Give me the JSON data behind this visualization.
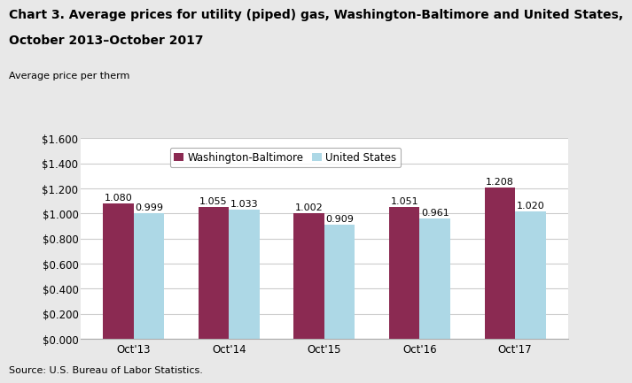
{
  "title_line1": "Chart 3. Average prices for utility (piped) gas, Washington-Baltimore and United States,",
  "title_line2": "October 2013–October 2017",
  "ylabel": "Average price per therm",
  "source": "Source: U.S. Bureau of Labor Statistics.",
  "categories": [
    "Oct'13",
    "Oct'14",
    "Oct'15",
    "Oct'16",
    "Oct'17"
  ],
  "series": [
    {
      "name": "Washington-Baltimore",
      "values": [
        1.08,
        1.055,
        1.002,
        1.051,
        1.208
      ],
      "color": "#8B2A52"
    },
    {
      "name": "United States",
      "values": [
        0.999,
        1.033,
        0.909,
        0.961,
        1.02
      ],
      "color": "#ADD8E6"
    }
  ],
  "ylim": [
    0,
    1.6
  ],
  "ytick_values": [
    0.0,
    0.2,
    0.4,
    0.6,
    0.8,
    1.0,
    1.2,
    1.4,
    1.6
  ],
  "ytick_labels": [
    "$0.000",
    "$0.200",
    "$0.400",
    "$0.600",
    "$0.800",
    "$1.000",
    "$1.200",
    "$1.400",
    "$1.600"
  ],
  "bar_width": 0.32,
  "figure_facecolor": "#e8e8e8",
  "plot_facecolor": "#ffffff",
  "title_fontsize": 10,
  "ylabel_fontsize": 8,
  "tick_fontsize": 8.5,
  "bar_label_fontsize": 8,
  "source_fontsize": 8,
  "legend_fontsize": 8.5
}
